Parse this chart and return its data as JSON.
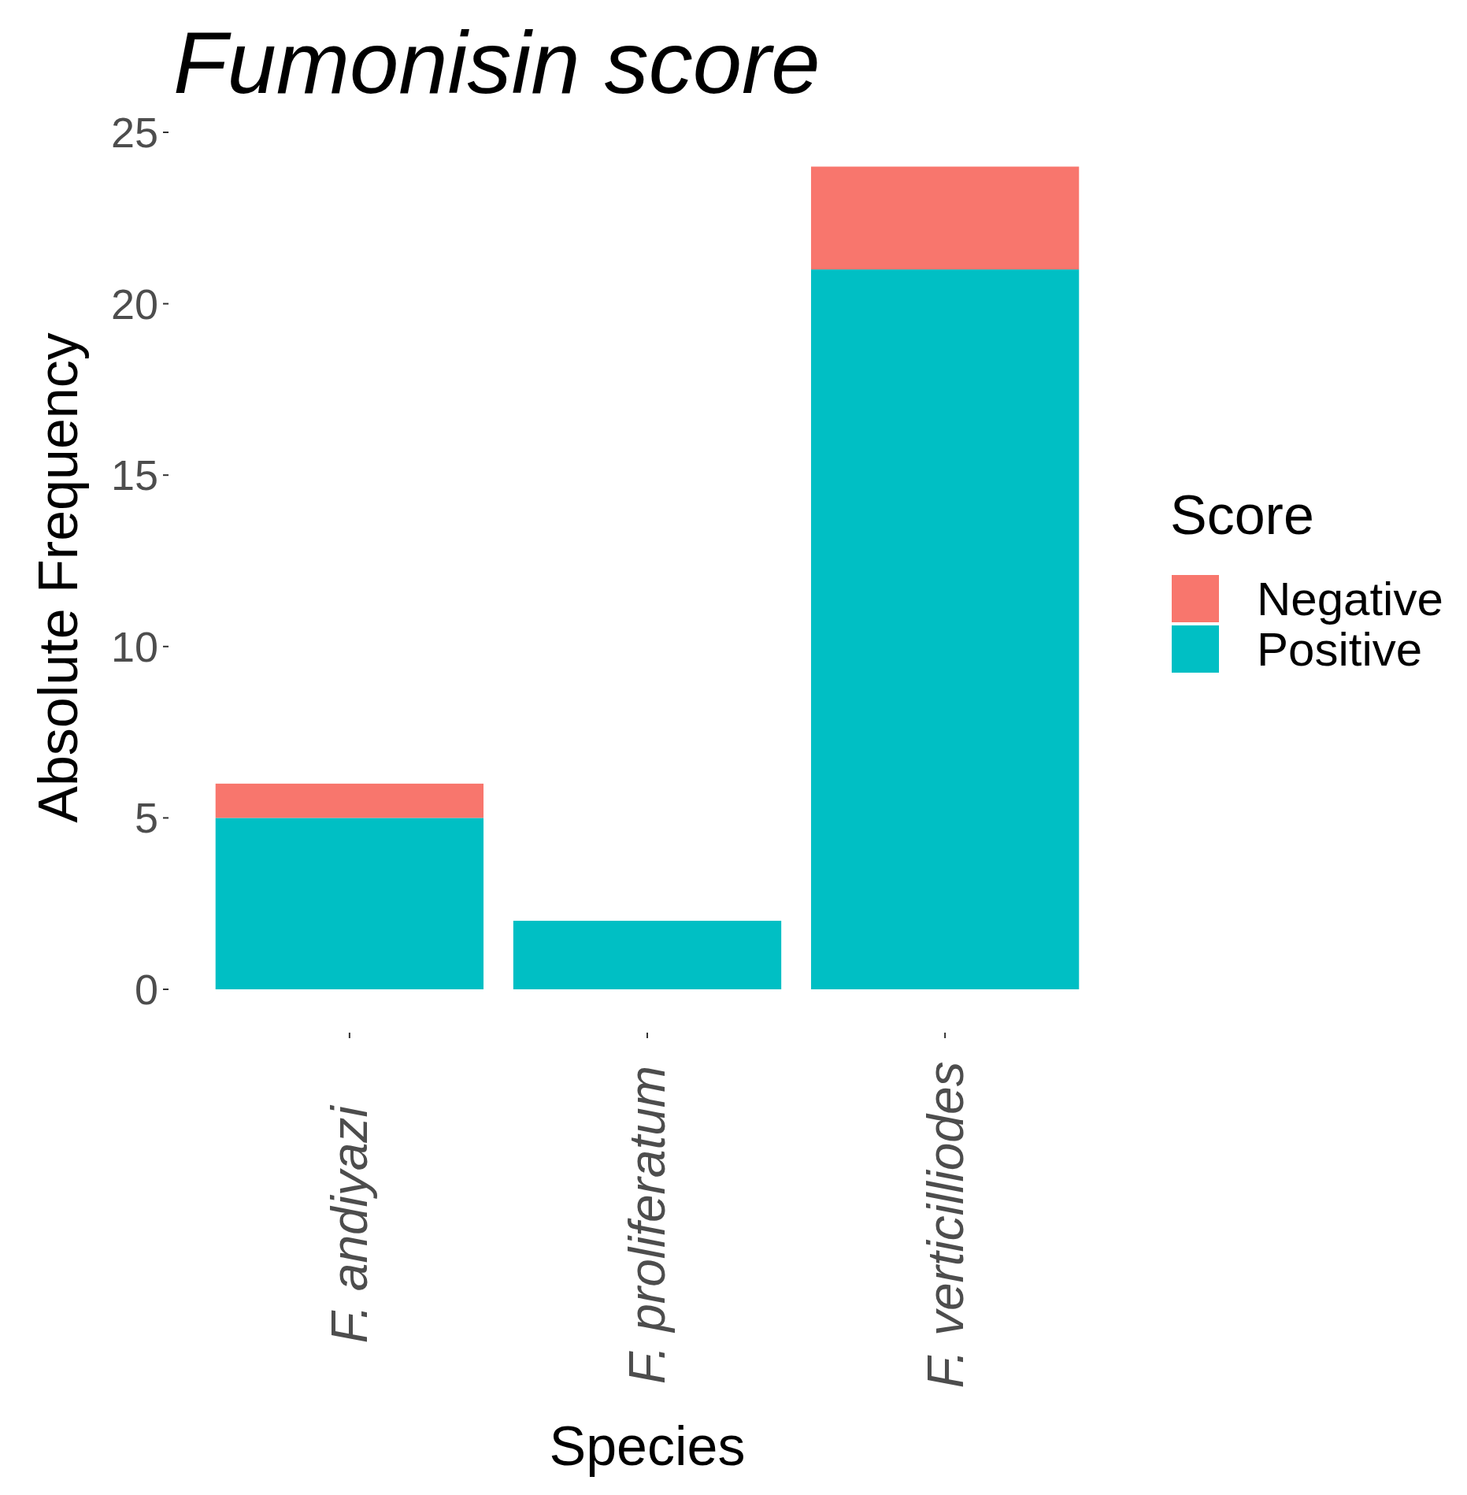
{
  "chart_data": {
    "type": "bar",
    "title": "Fumonisin score",
    "xlabel": "Species",
    "ylabel": "Absolute Frequency",
    "legend_title": "Score",
    "categories": [
      "F. andiyazi",
      "F. proliferatum",
      "F. verticilliodes"
    ],
    "stacked": true,
    "series": [
      {
        "name": "Positive",
        "color": "#00bfc4",
        "values": [
          5,
          2,
          21
        ]
      },
      {
        "name": "Negative",
        "color": "#f8766d",
        "values": [
          1,
          0,
          3
        ]
      }
    ],
    "ylim": [
      0,
      25
    ],
    "yticks": [
      0,
      5,
      10,
      15,
      20,
      25
    ],
    "grid": false,
    "legend": "right"
  }
}
